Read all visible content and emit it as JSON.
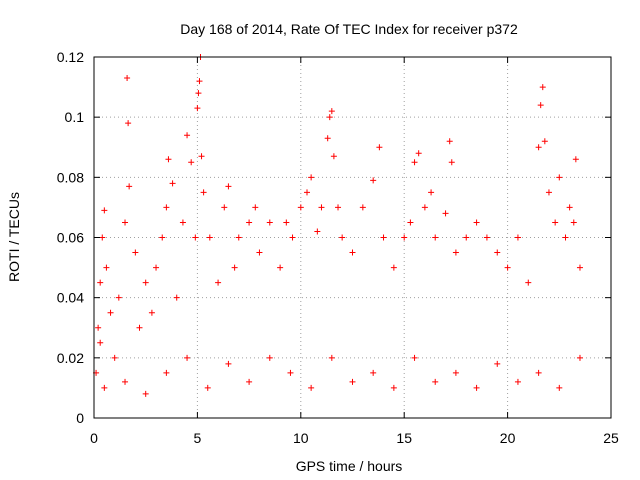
{
  "chart_data": {
    "type": "scatter",
    "title": "Day 168 of 2014, Rate Of TEC Index for receiver p372",
    "xlabel": "GPS time / hours",
    "ylabel": "ROTI / TECUs",
    "xlim": [
      0,
      25
    ],
    "ylim": [
      0,
      0.12
    ],
    "x_ticks": [
      0,
      5,
      10,
      15,
      20,
      25
    ],
    "x_tick_labels": [
      "0",
      "5",
      "10",
      "15",
      "20",
      "25"
    ],
    "y_ticks": [
      0,
      0.02,
      0.04,
      0.06,
      0.08,
      0.1,
      0.12
    ],
    "y_tick_labels": [
      "0",
      "0.02",
      "0.04",
      "0.06",
      "0.08",
      "0.1",
      "0.12"
    ],
    "grid": true,
    "marker": "plus",
    "series": [
      {
        "name": "ROTI",
        "color": "#ff0000",
        "points": [
          [
            0.1,
            0.015
          ],
          [
            0.2,
            0.03
          ],
          [
            0.3,
            0.045
          ],
          [
            0.4,
            0.06
          ],
          [
            0.5,
            0.069
          ],
          [
            0.3,
            0.025
          ],
          [
            0.6,
            0.05
          ],
          [
            0.8,
            0.035
          ],
          [
            1.0,
            0.02
          ],
          [
            1.2,
            0.04
          ],
          [
            1.5,
            0.065
          ],
          [
            1.6,
            0.113
          ],
          [
            1.65,
            0.098
          ],
          [
            1.7,
            0.077
          ],
          [
            2.0,
            0.055
          ],
          [
            2.2,
            0.03
          ],
          [
            2.5,
            0.045
          ],
          [
            2.8,
            0.035
          ],
          [
            3.0,
            0.05
          ],
          [
            3.3,
            0.06
          ],
          [
            3.5,
            0.07
          ],
          [
            3.6,
            0.086
          ],
          [
            3.8,
            0.078
          ],
          [
            4.0,
            0.04
          ],
          [
            4.3,
            0.065
          ],
          [
            4.5,
            0.094
          ],
          [
            4.7,
            0.085
          ],
          [
            4.9,
            0.06
          ],
          [
            5.0,
            0.103
          ],
          [
            5.05,
            0.108
          ],
          [
            5.1,
            0.112
          ],
          [
            5.15,
            0.12
          ],
          [
            5.2,
            0.087
          ],
          [
            5.3,
            0.075
          ],
          [
            5.6,
            0.06
          ],
          [
            6.0,
            0.045
          ],
          [
            6.3,
            0.07
          ],
          [
            6.5,
            0.077
          ],
          [
            6.8,
            0.05
          ],
          [
            7.0,
            0.06
          ],
          [
            7.5,
            0.065
          ],
          [
            7.8,
            0.07
          ],
          [
            8.0,
            0.055
          ],
          [
            8.5,
            0.065
          ],
          [
            9.0,
            0.05
          ],
          [
            9.3,
            0.065
          ],
          [
            9.6,
            0.06
          ],
          [
            10.0,
            0.07
          ],
          [
            10.3,
            0.075
          ],
          [
            10.5,
            0.08
          ],
          [
            10.8,
            0.062
          ],
          [
            11.0,
            0.07
          ],
          [
            11.3,
            0.093
          ],
          [
            11.4,
            0.1
          ],
          [
            11.5,
            0.102
          ],
          [
            11.6,
            0.087
          ],
          [
            11.8,
            0.07
          ],
          [
            12.0,
            0.06
          ],
          [
            12.5,
            0.055
          ],
          [
            13.0,
            0.07
          ],
          [
            13.5,
            0.079
          ],
          [
            13.8,
            0.09
          ],
          [
            14.0,
            0.06
          ],
          [
            14.5,
            0.05
          ],
          [
            15.0,
            0.06
          ],
          [
            15.3,
            0.065
          ],
          [
            15.5,
            0.085
          ],
          [
            15.7,
            0.088
          ],
          [
            16.0,
            0.07
          ],
          [
            16.3,
            0.075
          ],
          [
            16.5,
            0.06
          ],
          [
            17.0,
            0.068
          ],
          [
            17.2,
            0.092
          ],
          [
            17.3,
            0.085
          ],
          [
            17.5,
            0.055
          ],
          [
            18.0,
            0.06
          ],
          [
            18.5,
            0.065
          ],
          [
            19.0,
            0.06
          ],
          [
            19.5,
            0.055
          ],
          [
            20.0,
            0.05
          ],
          [
            20.5,
            0.06
          ],
          [
            21.0,
            0.045
          ],
          [
            21.5,
            0.09
          ],
          [
            21.6,
            0.104
          ],
          [
            21.7,
            0.11
          ],
          [
            21.8,
            0.092
          ],
          [
            22.0,
            0.075
          ],
          [
            22.3,
            0.065
          ],
          [
            22.5,
            0.08
          ],
          [
            22.8,
            0.06
          ],
          [
            23.0,
            0.07
          ],
          [
            23.2,
            0.065
          ],
          [
            23.3,
            0.086
          ],
          [
            23.5,
            0.05
          ],
          [
            0.5,
            0.01
          ],
          [
            1.5,
            0.012
          ],
          [
            2.5,
            0.008
          ],
          [
            3.5,
            0.015
          ],
          [
            4.5,
            0.02
          ],
          [
            5.5,
            0.01
          ],
          [
            6.5,
            0.018
          ],
          [
            7.5,
            0.012
          ],
          [
            8.5,
            0.02
          ],
          [
            9.5,
            0.015
          ],
          [
            10.5,
            0.01
          ],
          [
            11.5,
            0.02
          ],
          [
            12.5,
            0.012
          ],
          [
            13.5,
            0.015
          ],
          [
            14.5,
            0.01
          ],
          [
            15.5,
            0.02
          ],
          [
            16.5,
            0.012
          ],
          [
            17.5,
            0.015
          ],
          [
            18.5,
            0.01
          ],
          [
            19.5,
            0.018
          ],
          [
            20.5,
            0.012
          ],
          [
            21.5,
            0.015
          ],
          [
            22.5,
            0.01
          ],
          [
            23.5,
            0.02
          ]
        ]
      }
    ]
  }
}
